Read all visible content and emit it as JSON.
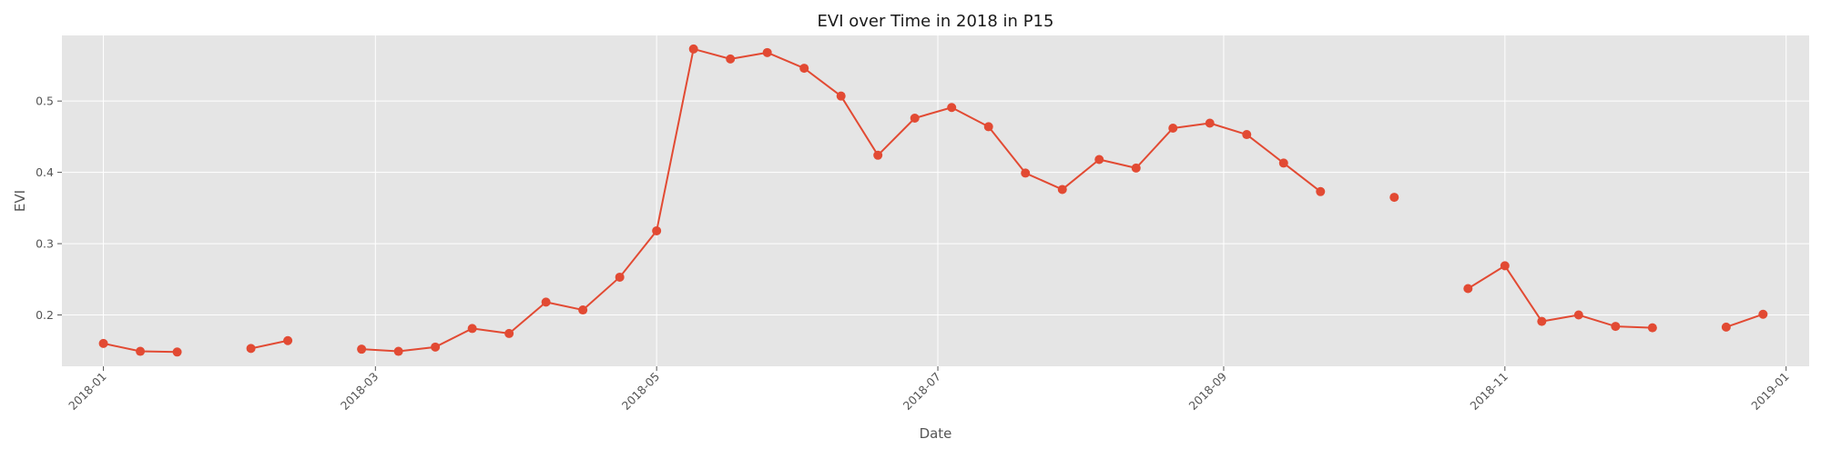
{
  "chart_data": {
    "type": "line",
    "title": "EVI over Time in 2018 in P15",
    "xlabel": "Date",
    "ylabel": "EVI",
    "x_ticks": [
      "2018-01",
      "2018-03",
      "2018-05",
      "2018-07",
      "2018-09",
      "2018-11",
      "2019-01"
    ],
    "y_ticks": [
      "0.2",
      "0.3",
      "0.4",
      "0.5"
    ],
    "xlim": [
      "2017-12-23",
      "2019-01-06"
    ],
    "ylim": [
      0.128,
      0.592
    ],
    "grid": true,
    "series": [
      {
        "color": "#E24A33",
        "points": [
          {
            "x": "2018-01-01",
            "y": 0.16
          },
          {
            "x": "2018-01-09",
            "y": 0.149
          },
          {
            "x": "2018-01-17",
            "y": 0.148
          },
          null,
          {
            "x": "2018-02-02",
            "y": 0.153
          },
          {
            "x": "2018-02-10",
            "y": 0.164
          },
          null,
          {
            "x": "2018-02-26",
            "y": 0.152
          },
          {
            "x": "2018-03-06",
            "y": 0.149
          },
          {
            "x": "2018-03-14",
            "y": 0.155
          },
          {
            "x": "2018-03-22",
            "y": 0.181
          },
          {
            "x": "2018-03-30",
            "y": 0.174
          },
          {
            "x": "2018-04-07",
            "y": 0.218
          },
          {
            "x": "2018-04-15",
            "y": 0.207
          },
          {
            "x": "2018-04-23",
            "y": 0.253
          },
          {
            "x": "2018-05-01",
            "y": 0.318
          },
          {
            "x": "2018-05-09",
            "y": 0.573
          },
          {
            "x": "2018-05-17",
            "y": 0.559
          },
          {
            "x": "2018-05-25",
            "y": 0.568
          },
          {
            "x": "2018-06-02",
            "y": 0.546
          },
          {
            "x": "2018-06-10",
            "y": 0.507
          },
          {
            "x": "2018-06-18",
            "y": 0.424
          },
          {
            "x": "2018-06-26",
            "y": 0.476
          },
          {
            "x": "2018-07-04",
            "y": 0.491
          },
          {
            "x": "2018-07-12",
            "y": 0.464
          },
          {
            "x": "2018-07-20",
            "y": 0.399
          },
          {
            "x": "2018-07-28",
            "y": 0.376
          },
          {
            "x": "2018-08-05",
            "y": 0.418
          },
          {
            "x": "2018-08-13",
            "y": 0.406
          },
          {
            "x": "2018-08-21",
            "y": 0.462
          },
          {
            "x": "2018-08-29",
            "y": 0.469
          },
          {
            "x": "2018-09-06",
            "y": 0.453
          },
          {
            "x": "2018-09-14",
            "y": 0.413
          },
          {
            "x": "2018-09-22",
            "y": 0.373
          },
          null,
          {
            "x": "2018-10-08",
            "y": 0.365
          },
          null,
          {
            "x": "2018-10-24",
            "y": 0.237
          },
          {
            "x": "2018-11-01",
            "y": 0.269
          },
          {
            "x": "2018-11-09",
            "y": 0.191
          },
          {
            "x": "2018-11-17",
            "y": 0.2
          },
          {
            "x": "2018-11-25",
            "y": 0.184
          },
          {
            "x": "2018-12-03",
            "y": 0.182
          },
          null,
          {
            "x": "2018-12-19",
            "y": 0.183
          },
          {
            "x": "2018-12-27",
            "y": 0.201
          }
        ]
      }
    ]
  },
  "colors": {
    "plot_background": "#E5E5E5",
    "grid": "#FFFFFF",
    "line": "#E24A33",
    "text": "#555555"
  }
}
